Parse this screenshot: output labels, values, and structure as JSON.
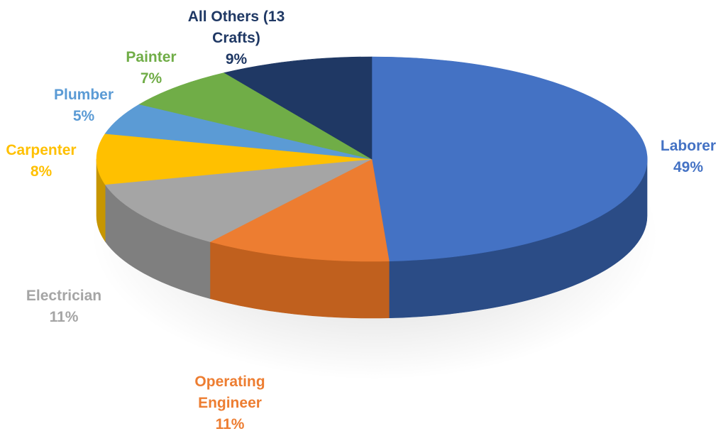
{
  "chart_data": {
    "type": "pie",
    "style": "3d",
    "title": "",
    "unit": "%",
    "slices": [
      {
        "label_lines": [
          "Laborer"
        ],
        "value": 49,
        "value_text": "49%",
        "color": "#4472C4",
        "side_color": "#2B4C86",
        "label_color": "#4472C4"
      },
      {
        "label_lines": [
          "Operating",
          "Engineer"
        ],
        "value": 11,
        "value_text": "11%",
        "color": "#ED7D31",
        "side_color": "#C0601E",
        "label_color": "#ED7D31"
      },
      {
        "label_lines": [
          "Electrician"
        ],
        "value": 11,
        "value_text": "11%",
        "color": "#A5A5A5",
        "side_color": "#7F7F7F",
        "label_color": "#A5A5A5"
      },
      {
        "label_lines": [
          "Carpenter"
        ],
        "value": 8,
        "value_text": "8%",
        "color": "#FFC000",
        "side_color": "#C79600",
        "label_color": "#FFC000"
      },
      {
        "label_lines": [
          "Plumber"
        ],
        "value": 5,
        "value_text": "5%",
        "color": "#5B9BD5",
        "side_color": "#3C73A6",
        "label_color": "#5B9BD5"
      },
      {
        "label_lines": [
          "Painter"
        ],
        "value": 7,
        "value_text": "7%",
        "color": "#70AD47",
        "side_color": "#4E8030",
        "label_color": "#70AD47"
      },
      {
        "label_lines": [
          "All Others (13",
          "Crafts)"
        ],
        "value": 9,
        "value_text": "9%",
        "color": "#1F3864",
        "side_color": "#142646",
        "label_color": "#1F3864"
      }
    ]
  }
}
